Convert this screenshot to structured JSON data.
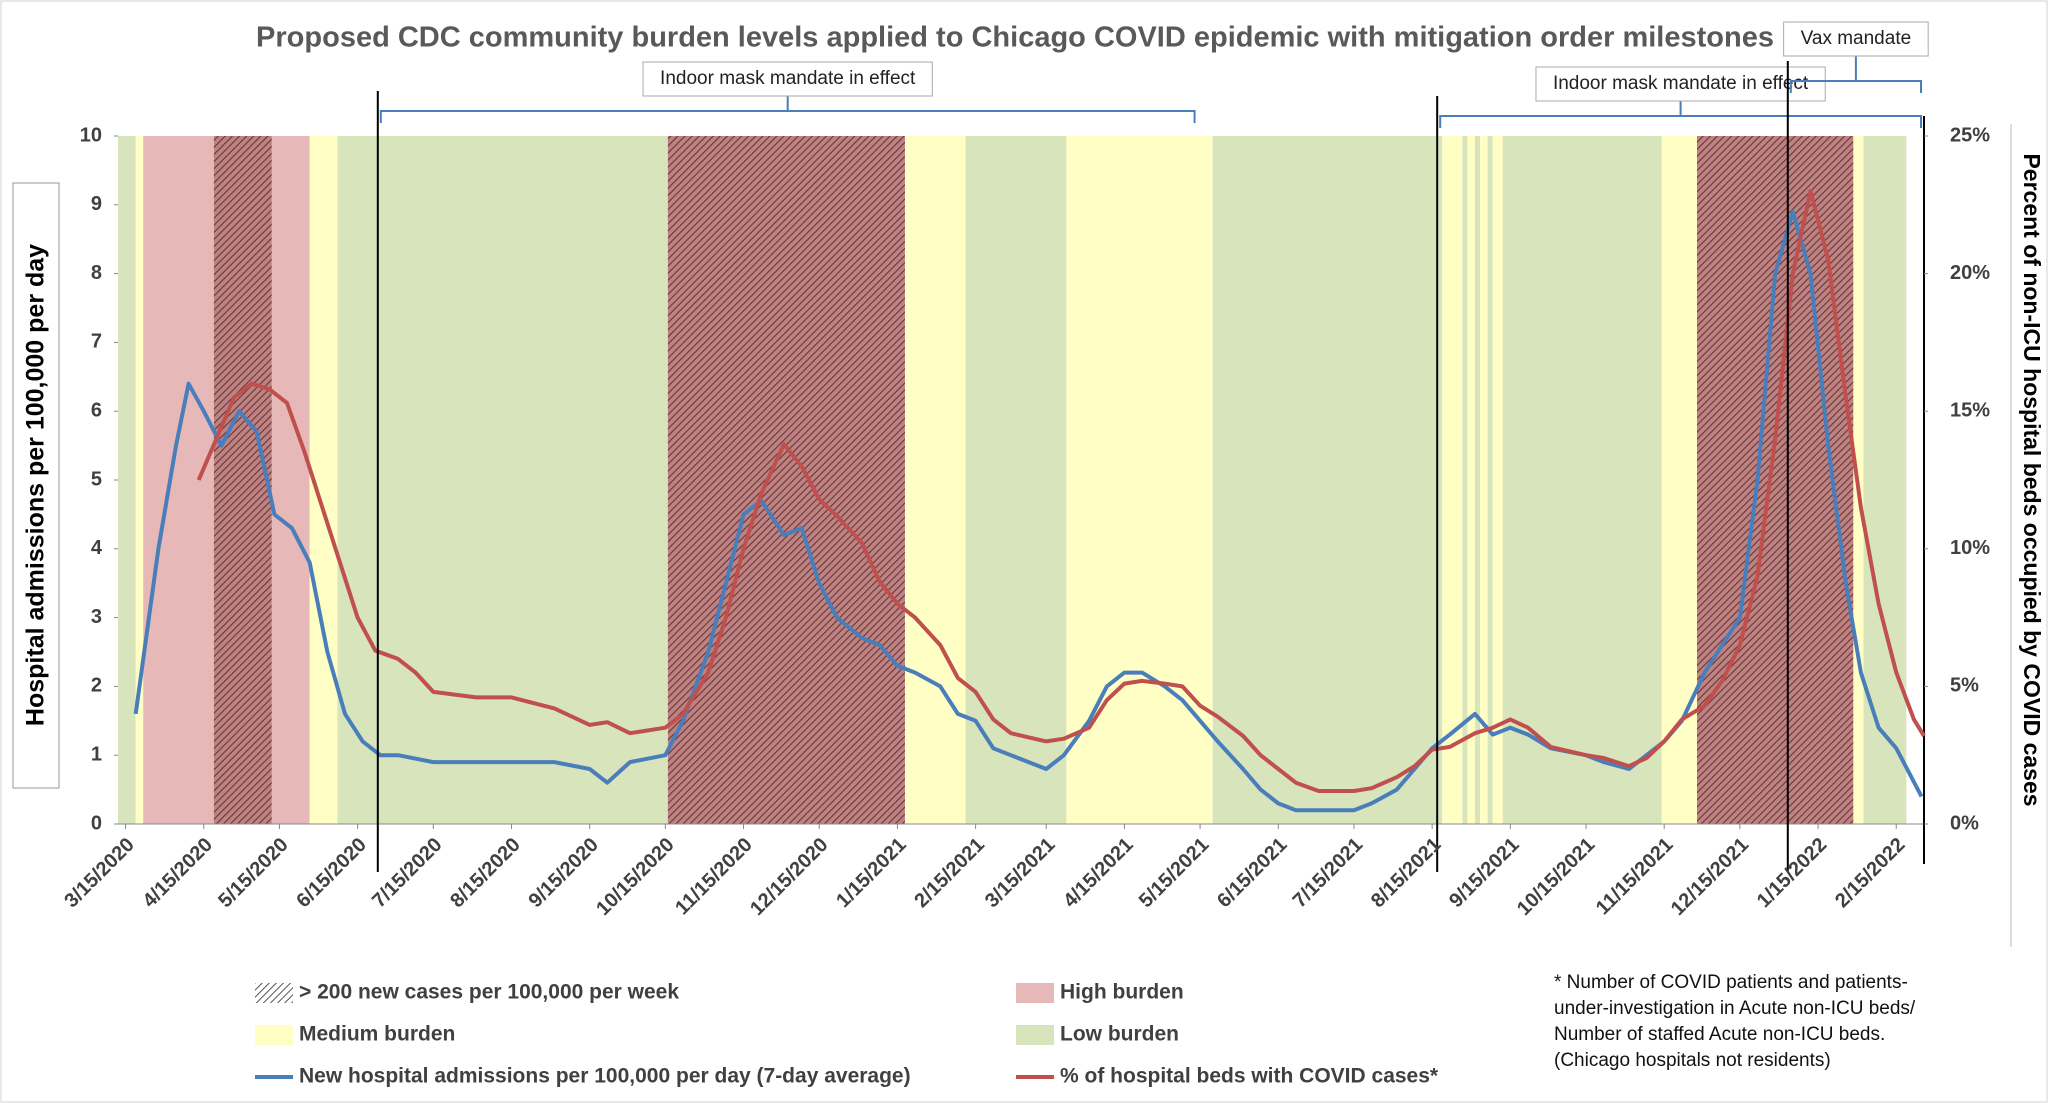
{
  "chart_data": {
    "type": "line",
    "title": "Proposed CDC community burden levels applied to Chicago COVID epidemic with mitigation order milestones",
    "y_label": "Hospital admissions per 100,000  per day",
    "y2_label": "Percent of non-ICU hospital beds occupied by COVID cases",
    "xlim": [
      "3/12/2020",
      "2/26/2022"
    ],
    "xticks": [
      "3/15/2020",
      "4/15/2020",
      "5/15/2020",
      "6/15/2020",
      "7/15/2020",
      "8/15/2020",
      "9/15/2020",
      "10/15/2020",
      "11/15/2020",
      "12/15/2020",
      "1/15/2021",
      "2/15/2021",
      "3/15/2021",
      "4/15/2021",
      "5/15/2021",
      "6/15/2021",
      "7/15/2021",
      "8/15/2021",
      "9/15/2021",
      "10/15/2021",
      "11/15/2021",
      "12/15/2021",
      "1/15/2022",
      "2/15/2022"
    ],
    "ylim": [
      0,
      10
    ],
    "yticks": [
      0,
      1,
      2,
      3,
      4,
      5,
      6,
      7,
      8,
      9,
      10
    ],
    "y2lim": [
      0,
      25
    ],
    "y2ticks": [
      {
        "value": 0,
        "label": "0%"
      },
      {
        "value": 5,
        "label": "5%"
      },
      {
        "value": 10,
        "label": "10%"
      },
      {
        "value": 15,
        "label": "15%"
      },
      {
        "value": 20,
        "label": "20%"
      },
      {
        "value": 25,
        "label": "25%"
      }
    ],
    "legend_levels": [
      {
        "name": "> 200 new cases per 100,000 per week",
        "color": "#7f7f7f",
        "hatched": true
      },
      {
        "name": "High burden",
        "color": "#e6b9b8"
      },
      {
        "name": "Medium burden",
        "color": "#ffffc5"
      },
      {
        "name": "Low burden",
        "color": "#d8e4bc"
      }
    ],
    "bands": [
      {
        "start": "3/12/2020",
        "end": "3/19/2020",
        "level": "Low burden"
      },
      {
        "start": "3/19/2020",
        "end": "3/22/2020",
        "level": "Medium burden"
      },
      {
        "start": "3/22/2020",
        "end": "4/19/2020",
        "level": "High burden"
      },
      {
        "start": "4/19/2020",
        "end": "5/12/2020",
        "level": "High burden",
        "hatched": true
      },
      {
        "start": "5/12/2020",
        "end": "5/27/2020",
        "level": "High burden"
      },
      {
        "start": "5/27/2020",
        "end": "6/7/2020",
        "level": "Medium burden"
      },
      {
        "start": "6/7/2020",
        "end": "10/16/2020",
        "level": "Low burden"
      },
      {
        "start": "10/16/2020",
        "end": "1/18/2021",
        "level": "High burden",
        "hatched": true
      },
      {
        "start": "1/18/2021",
        "end": "2/11/2021",
        "level": "Medium burden"
      },
      {
        "start": "2/11/2021",
        "end": "3/23/2021",
        "level": "Low burden"
      },
      {
        "start": "3/23/2021",
        "end": "5/20/2021",
        "level": "Medium burden"
      },
      {
        "start": "5/20/2021",
        "end": "8/19/2021",
        "level": "Low burden"
      },
      {
        "start": "8/19/2021",
        "end": "8/27/2021",
        "level": "Medium burden"
      },
      {
        "start": "8/27/2021",
        "end": "8/29/2021",
        "level": "Low burden"
      },
      {
        "start": "8/29/2021",
        "end": "9/1/2021",
        "level": "Medium burden"
      },
      {
        "start": "9/1/2021",
        "end": "9/3/2021",
        "level": "Low burden"
      },
      {
        "start": "9/3/2021",
        "end": "9/6/2021",
        "level": "Medium burden"
      },
      {
        "start": "9/6/2021",
        "end": "9/8/2021",
        "level": "Low burden"
      },
      {
        "start": "9/8/2021",
        "end": "9/12/2021",
        "level": "Medium burden"
      },
      {
        "start": "9/12/2021",
        "end": "11/14/2021",
        "level": "Low burden"
      },
      {
        "start": "11/14/2021",
        "end": "11/28/2021",
        "level": "Medium burden"
      },
      {
        "start": "11/28/2021",
        "end": "1/29/2022",
        "level": "High burden",
        "hatched": true
      },
      {
        "start": "1/29/2022",
        "end": "2/2/2022",
        "level": "Medium burden"
      },
      {
        "start": "2/2/2022",
        "end": "2/19/2022",
        "level": "Low burden"
      }
    ],
    "annotations": [
      {
        "text": "Indoor mask mandate in effect",
        "start": "6/23/2020",
        "end": "5/14/2021"
      },
      {
        "text": "Indoor mask mandate in effect",
        "start": "8/17/2021",
        "end": "2/26/2022"
      },
      {
        "text": "Vax mandate",
        "start": "1/3/2022",
        "end": "2/26/2022"
      }
    ],
    "series": [
      {
        "name": "New hospital admissions per 100,000 per day (7-day average)",
        "color": "#4a7ebb",
        "x": [
          "3/19/2020",
          "3/28/2020",
          "4/4/2020",
          "4/9/2020",
          "4/15/2020",
          "4/22/2020",
          "4/29/2020",
          "5/6/2020",
          "5/13/2020",
          "5/20/2020",
          "5/27/2020",
          "6/3/2020",
          "6/10/2020",
          "6/17/2020",
          "6/24/2020",
          "7/1/2020",
          "7/15/2020",
          "8/1/2020",
          "8/15/2020",
          "9/1/2020",
          "9/15/2020",
          "9/22/2020",
          "10/1/2020",
          "10/15/2020",
          "10/22/2020",
          "11/1/2020",
          "11/8/2020",
          "11/15/2020",
          "11/22/2020",
          "12/1/2020",
          "12/8/2020",
          "12/15/2020",
          "12/22/2020",
          "1/1/2021",
          "1/8/2021",
          "1/15/2021",
          "1/22/2021",
          "2/1/2021",
          "2/8/2021",
          "2/15/2021",
          "2/22/2021",
          "3/1/2021",
          "3/8/2021",
          "3/15/2021",
          "3/22/2021",
          "4/1/2021",
          "4/8/2021",
          "4/15/2021",
          "4/22/2021",
          "5/1/2021",
          "5/8/2021",
          "5/15/2021",
          "5/22/2021",
          "6/1/2021",
          "6/8/2021",
          "6/15/2021",
          "6/22/2021",
          "7/1/2021",
          "7/15/2021",
          "7/22/2021",
          "8/1/2021",
          "8/8/2021",
          "8/15/2021",
          "8/22/2021",
          "9/1/2021",
          "9/8/2021",
          "9/15/2021",
          "9/22/2021",
          "10/1/2021",
          "10/15/2021",
          "10/22/2021",
          "11/1/2021",
          "11/8/2021",
          "11/15/2021",
          "11/22/2021",
          "12/1/2021",
          "12/8/2021",
          "12/15/2021",
          "12/22/2021",
          "12/29/2021",
          "1/5/2022",
          "1/12/2022",
          "1/19/2022",
          "1/26/2022",
          "2/1/2022",
          "2/8/2022",
          "2/15/2022",
          "2/25/2022"
        ],
        "values": [
          1.6,
          4.0,
          5.5,
          6.4,
          6.0,
          5.5,
          6.0,
          5.7,
          4.5,
          4.3,
          3.8,
          2.5,
          1.6,
          1.2,
          1.0,
          1.0,
          0.9,
          0.9,
          0.9,
          0.9,
          0.8,
          0.6,
          0.9,
          1.0,
          1.5,
          2.5,
          3.5,
          4.5,
          4.7,
          4.2,
          4.3,
          3.5,
          3.0,
          2.7,
          2.6,
          2.3,
          2.2,
          2.0,
          1.6,
          1.5,
          1.1,
          1.0,
          0.9,
          0.8,
          1.0,
          1.5,
          2.0,
          2.2,
          2.2,
          2.0,
          1.8,
          1.5,
          1.2,
          0.8,
          0.5,
          0.3,
          0.2,
          0.2,
          0.2,
          0.3,
          0.5,
          0.8,
          1.1,
          1.3,
          1.6,
          1.3,
          1.4,
          1.3,
          1.1,
          1.0,
          0.9,
          0.8,
          1.0,
          1.2,
          1.5,
          2.2,
          2.6,
          3.0,
          5.0,
          8.0,
          8.9,
          8.0,
          5.5,
          3.5,
          2.2,
          1.4,
          1.1,
          0.4
        ]
      },
      {
        "name": "% of hospital beds with COVID cases*",
        "color": "#c0504d",
        "axis": "y2",
        "x": [
          "4/13/2020",
          "4/20/2020",
          "4/27/2020",
          "5/4/2020",
          "5/11/2020",
          "5/18/2020",
          "5/25/2020",
          "6/1/2020",
          "6/8/2020",
          "6/15/2020",
          "6/22/2020",
          "7/1/2020",
          "7/8/2020",
          "7/15/2020",
          "8/1/2020",
          "8/15/2020",
          "9/1/2020",
          "9/15/2020",
          "9/22/2020",
          "10/1/2020",
          "10/15/2020",
          "10/22/2020",
          "11/1/2020",
          "11/8/2020",
          "11/15/2020",
          "11/22/2020",
          "12/1/2020",
          "12/8/2020",
          "12/15/2020",
          "12/22/2020",
          "1/1/2021",
          "1/8/2021",
          "1/15/2021",
          "1/22/2021",
          "2/1/2021",
          "2/8/2021",
          "2/15/2021",
          "2/22/2021",
          "3/1/2021",
          "3/15/2021",
          "3/22/2021",
          "4/1/2021",
          "4/8/2021",
          "4/15/2021",
          "4/22/2021",
          "5/1/2021",
          "5/8/2021",
          "5/15/2021",
          "5/22/2021",
          "6/1/2021",
          "6/8/2021",
          "6/15/2021",
          "6/22/2021",
          "7/1/2021",
          "7/15/2021",
          "7/22/2021",
          "8/1/2021",
          "8/8/2021",
          "8/15/2021",
          "8/22/2021",
          "9/1/2021",
          "9/8/2021",
          "9/15/2021",
          "9/22/2021",
          "10/1/2021",
          "10/15/2021",
          "10/22/2021",
          "11/1/2021",
          "11/8/2021",
          "11/15/2021",
          "11/22/2021",
          "12/1/2021",
          "12/8/2021",
          "12/15/2021",
          "12/22/2021",
          "12/29/2021",
          "1/5/2022",
          "1/12/2022",
          "1/19/2022",
          "1/26/2022",
          "2/1/2022",
          "2/8/2022",
          "2/15/2022",
          "2/22/2022",
          "2/26/2022"
        ],
        "values": [
          12.5,
          14,
          15.5,
          16.0,
          15.8,
          15.3,
          13.5,
          11.5,
          9.5,
          7.5,
          6.3,
          6.0,
          5.5,
          4.8,
          4.6,
          4.6,
          4.2,
          3.6,
          3.7,
          3.3,
          3.5,
          4.0,
          5.5,
          7.5,
          10.0,
          12.0,
          13.8,
          13.0,
          11.8,
          11.2,
          10.2,
          8.8,
          8.0,
          7.5,
          6.5,
          5.3,
          4.8,
          3.8,
          3.3,
          3.0,
          3.1,
          3.5,
          4.5,
          5.1,
          5.2,
          5.1,
          5.0,
          4.3,
          3.9,
          3.2,
          2.5,
          2.0,
          1.5,
          1.2,
          1.2,
          1.3,
          1.7,
          2.1,
          2.7,
          2.8,
          3.3,
          3.5,
          3.8,
          3.5,
          2.8,
          2.5,
          2.4,
          2.1,
          2.4,
          3.0,
          3.8,
          4.3,
          5.2,
          6.5,
          9.0,
          14.0,
          20.0,
          23.0,
          20.5,
          15.5,
          11.5,
          8.0,
          5.5,
          3.8,
          3.2
        ]
      }
    ],
    "footnote": [
      "*  Number of COVID patients and patients-",
      "under-investigation in Acute non-ICU beds/",
      "Number of staffed Acute non-ICU beds.",
      "(Chicago hospitals not residents)"
    ]
  }
}
